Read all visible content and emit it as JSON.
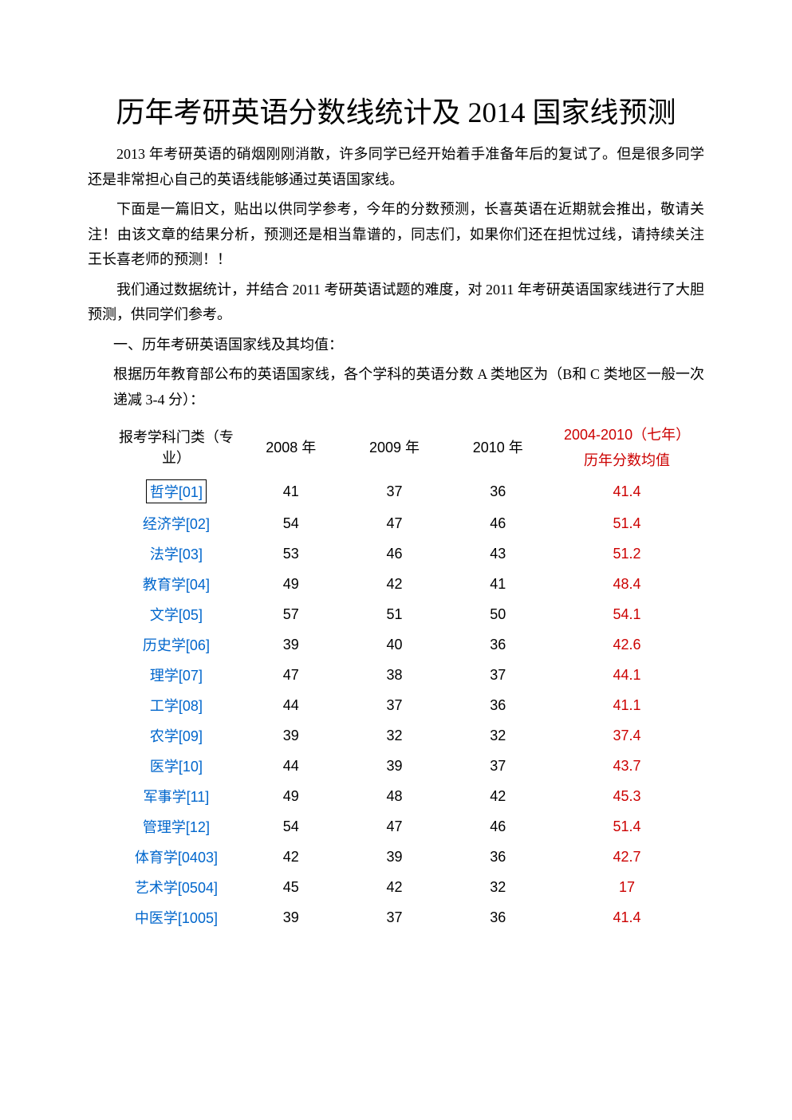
{
  "title": "历年考研英语分数线统计及 2014 国家线预测",
  "paragraphs": {
    "p1": "2013 年考研英语的硝烟刚刚消散，许多同学已经开始着手准备年后的复试了。但是很多同学还是非常担心自己的英语线能够通过英语国家线。",
    "p2": "下面是一篇旧文，贴出以供同学参考，今年的分数预测，长喜英语在近期就会推出，敬请关注！由该文章的结果分析，预测还是相当靠谱的，同志们，如果你们还在担忧过线，请持续关注王长喜老师的预测！！",
    "p3": "我们通过数据统计，并结合 2011 考研英语试题的难度，对 2011 年考研英语国家线进行了大胆预测，供同学们参考。",
    "p4": "一、历年考研英语国家线及其均值：",
    "p5": "根据历年教育部公布的英语国家线，各个学科的英语分数 A 类地区为（B和 C 类地区一般一次递减 3-4 分）："
  },
  "table": {
    "type": "table",
    "header": {
      "subject": "报考学科门类（专业）",
      "y2008": "2008 年",
      "y2009": "2009 年",
      "y2010": "2010 年",
      "avg_line1": "2004-2010（七年）",
      "avg_line2": "历年分数均值"
    },
    "columns": [
      "subject",
      "y2008",
      "y2009",
      "y2010",
      "avg"
    ],
    "subject_color": "#0066cc",
    "avg_color": "#cc0000",
    "text_color": "#000000",
    "background_color": "#ffffff",
    "font_size": 18,
    "rows": [
      {
        "subject": "哲学[01]",
        "y2008": "41",
        "y2009": "37",
        "y2010": "36",
        "avg": "41.4",
        "selected": true
      },
      {
        "subject": "经济学[02]",
        "y2008": "54",
        "y2009": "47",
        "y2010": "46",
        "avg": "51.4"
      },
      {
        "subject": "法学[03]",
        "y2008": "53",
        "y2009": "46",
        "y2010": "43",
        "avg": "51.2"
      },
      {
        "subject": "教育学[04]",
        "y2008": "49",
        "y2009": "42",
        "y2010": "41",
        "avg": "48.4"
      },
      {
        "subject": "文学[05]",
        "y2008": "57",
        "y2009": "51",
        "y2010": "50",
        "avg": "54.1"
      },
      {
        "subject": "历史学[06]",
        "y2008": "39",
        "y2009": "40",
        "y2010": "36",
        "avg": "42.6"
      },
      {
        "subject": "理学[07]",
        "y2008": "47",
        "y2009": "38",
        "y2010": "37",
        "avg": "44.1"
      },
      {
        "subject": "工学[08]",
        "y2008": "44",
        "y2009": "37",
        "y2010": "36",
        "avg": "41.1"
      },
      {
        "subject": "农学[09]",
        "y2008": "39",
        "y2009": "32",
        "y2010": "32",
        "avg": "37.4"
      },
      {
        "subject": "医学[10]",
        "y2008": "44",
        "y2009": "39",
        "y2010": "37",
        "avg": "43.7"
      },
      {
        "subject": "军事学[11]",
        "y2008": "49",
        "y2009": "48",
        "y2010": "42",
        "avg": "45.3"
      },
      {
        "subject": "管理学[12]",
        "y2008": "54",
        "y2009": "47",
        "y2010": "46",
        "avg": "51.4"
      },
      {
        "subject": "体育学[0403]",
        "y2008": "42",
        "y2009": "39",
        "y2010": "36",
        "avg": "42.7"
      },
      {
        "subject": "艺术学[0504]",
        "y2008": "45",
        "y2009": "42",
        "y2010": "32",
        "avg": "17"
      },
      {
        "subject": "中医学[1005]",
        "y2008": "39",
        "y2009": "37",
        "y2010": "36",
        "avg": "41.4"
      }
    ]
  }
}
